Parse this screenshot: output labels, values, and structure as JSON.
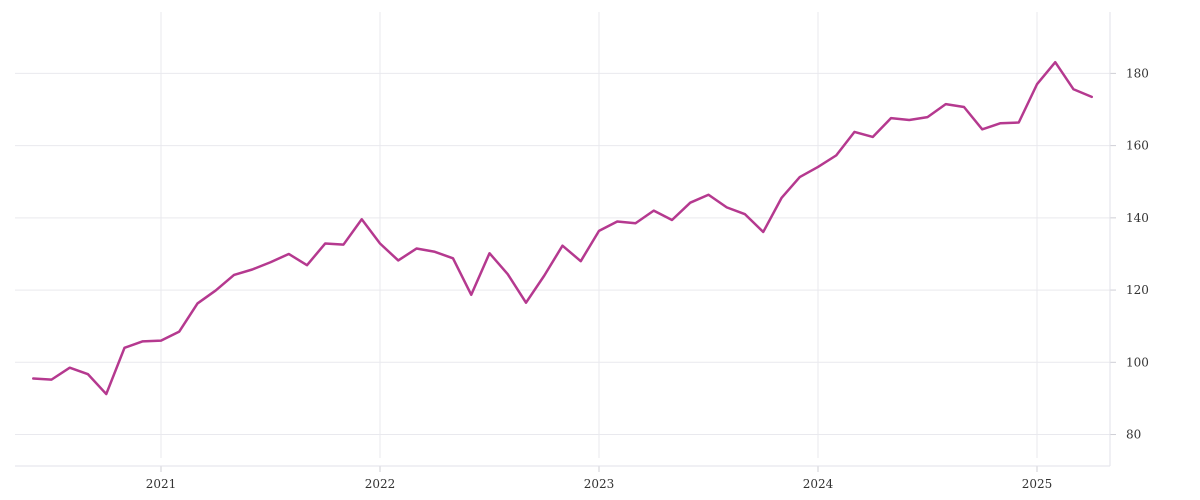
{
  "chart_data": {
    "type": "line",
    "title": "",
    "xlabel": "",
    "ylabel": "",
    "x_ticks": [
      "2021",
      "2022",
      "2023",
      "2024",
      "2025"
    ],
    "y_ticks": [
      80,
      100,
      120,
      140,
      160,
      180
    ],
    "ylim": [
      73.5,
      197
    ],
    "xlim": [
      "2020-05",
      "2025-05"
    ],
    "grid": true,
    "legend": "none",
    "line_color": "#b5398f",
    "grid_color": "#e9e9ee",
    "series": [
      {
        "x": [
          "2020-06",
          "2020-07",
          "2020-08",
          "2020-09",
          "2020-10",
          "2020-11",
          "2020-12",
          "2021-01",
          "2021-02",
          "2021-03",
          "2021-04",
          "2021-05",
          "2021-06",
          "2021-07",
          "2021-08",
          "2021-09",
          "2021-10",
          "2021-11",
          "2021-12",
          "2022-01",
          "2022-02",
          "2022-03",
          "2022-04",
          "2022-05",
          "2022-06",
          "2022-07",
          "2022-08",
          "2022-09",
          "2022-10",
          "2022-11",
          "2022-12",
          "2023-01",
          "2023-02",
          "2023-03",
          "2023-04",
          "2023-05",
          "2023-06",
          "2023-07",
          "2023-08",
          "2023-09",
          "2023-10",
          "2023-11",
          "2023-12",
          "2024-01",
          "2024-02",
          "2024-03",
          "2024-04",
          "2024-05",
          "2024-06",
          "2024-07",
          "2024-08",
          "2024-09",
          "2024-10",
          "2024-11",
          "2024-12",
          "2025-01",
          "2025-02",
          "2025-03",
          "2025-04"
        ],
        "values": [
          95.5,
          95.2,
          98.5,
          96.7,
          91.2,
          104.0,
          105.8,
          106.0,
          108.5,
          116.3,
          119.9,
          124.2,
          125.7,
          127.7,
          130.0,
          126.9,
          132.9,
          132.6,
          139.6,
          132.9,
          128.2,
          131.5,
          130.6,
          128.8,
          118.7,
          130.2,
          124.4,
          116.5,
          124.0,
          132.3,
          128.0,
          136.4,
          139.0,
          138.5,
          142.0,
          139.4,
          144.2,
          146.4,
          142.9,
          141.0,
          136.1,
          145.5,
          151.3,
          154.1,
          157.3,
          163.8,
          162.4,
          167.6,
          167.1,
          167.9,
          171.5,
          170.7,
          164.5,
          166.2,
          166.4,
          177.0,
          183.1,
          175.6,
          173.5
        ]
      }
    ]
  }
}
